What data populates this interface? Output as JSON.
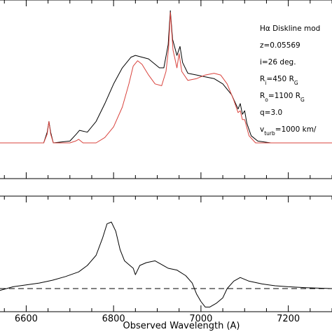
{
  "chart_data": [
    {
      "type": "line",
      "panel": "top",
      "title": "",
      "xlabel": "",
      "ylabel": "",
      "xlim": [
        6540,
        7300
      ],
      "ylim": [
        0,
        1.0
      ],
      "annotation_lines": [
        "Hα Diskline mod",
        "z=0.05569",
        "i=26 deg.",
        "R_i=450 R_G",
        "R_o=1100 R_G",
        "q=3.0",
        "v_turb=1000 km/"
      ],
      "series": [
        {
          "color": "#000000",
          "points": [
            [
              6540,
              0.2
            ],
            [
              6600,
              0.2
            ],
            [
              6640,
              0.2
            ],
            [
              6648,
              0.26
            ],
            [
              6652,
              0.32
            ],
            [
              6656,
              0.26
            ],
            [
              6662,
              0.2
            ],
            [
              6700,
              0.21
            ],
            [
              6715,
              0.25
            ],
            [
              6722,
              0.27
            ],
            [
              6740,
              0.26
            ],
            [
              6760,
              0.32
            ],
            [
              6780,
              0.42
            ],
            [
              6800,
              0.53
            ],
            [
              6820,
              0.62
            ],
            [
              6840,
              0.68
            ],
            [
              6850,
              0.69
            ],
            [
              6865,
              0.68
            ],
            [
              6880,
              0.67
            ],
            [
              6895,
              0.64
            ],
            [
              6905,
              0.62
            ],
            [
              6915,
              0.62
            ],
            [
              6925,
              0.75
            ],
            [
              6930,
              0.94
            ],
            [
              6935,
              0.78
            ],
            [
              6945,
              0.69
            ],
            [
              6952,
              0.74
            ],
            [
              6958,
              0.65
            ],
            [
              6970,
              0.59
            ],
            [
              6990,
              0.58
            ],
            [
              7010,
              0.57
            ],
            [
              7030,
              0.56
            ],
            [
              7050,
              0.53
            ],
            [
              7070,
              0.47
            ],
            [
              7085,
              0.39
            ],
            [
              7090,
              0.42
            ],
            [
              7095,
              0.36
            ],
            [
              7100,
              0.38
            ],
            [
              7105,
              0.31
            ],
            [
              7115,
              0.24
            ],
            [
              7130,
              0.21
            ],
            [
              7160,
              0.2
            ],
            [
              7200,
              0.2
            ],
            [
              7300,
              0.2
            ]
          ]
        },
        {
          "color": "#d9433d",
          "points": [
            [
              6540,
              0.2
            ],
            [
              6600,
              0.2
            ],
            [
              6640,
              0.2
            ],
            [
              6648,
              0.25
            ],
            [
              6652,
              0.32
            ],
            [
              6656,
              0.25
            ],
            [
              6662,
              0.2
            ],
            [
              6700,
              0.2
            ],
            [
              6713,
              0.21
            ],
            [
              6720,
              0.22
            ],
            [
              6730,
              0.2
            ],
            [
              6760,
              0.2
            ],
            [
              6780,
              0.23
            ],
            [
              6800,
              0.29
            ],
            [
              6820,
              0.4
            ],
            [
              6835,
              0.53
            ],
            [
              6845,
              0.63
            ],
            [
              6855,
              0.66
            ],
            [
              6865,
              0.64
            ],
            [
              6880,
              0.58
            ],
            [
              6895,
              0.53
            ],
            [
              6910,
              0.52
            ],
            [
              6920,
              0.6
            ],
            [
              6926,
              0.73
            ],
            [
              6930,
              0.93
            ],
            [
              6936,
              0.72
            ],
            [
              6945,
              0.62
            ],
            [
              6950,
              0.7
            ],
            [
              6956,
              0.6
            ],
            [
              6970,
              0.55
            ],
            [
              6990,
              0.56
            ],
            [
              7010,
              0.58
            ],
            [
              7030,
              0.59
            ],
            [
              7045,
              0.58
            ],
            [
              7060,
              0.53
            ],
            [
              7075,
              0.44
            ],
            [
              7085,
              0.37
            ],
            [
              7090,
              0.38
            ],
            [
              7095,
              0.33
            ],
            [
              7100,
              0.33
            ],
            [
              7110,
              0.24
            ],
            [
              7125,
              0.2
            ],
            [
              7160,
              0.2
            ],
            [
              7300,
              0.2
            ]
          ]
        }
      ]
    },
    {
      "type": "line",
      "panel": "bottom",
      "title": "",
      "xlabel": "Observed Wavelength (A)",
      "ylabel": "",
      "xlim": [
        6540,
        7300
      ],
      "ylim": [
        -0.25,
        1.0
      ],
      "x_ticks": [
        6600,
        6800,
        7000,
        7200
      ],
      "zero_line": 0,
      "series": [
        {
          "color": "#000000",
          "points": [
            [
              6540,
              -0.02
            ],
            [
              6570,
              0.02
            ],
            [
              6600,
              0.04
            ],
            [
              6630,
              0.06
            ],
            [
              6660,
              0.09
            ],
            [
              6690,
              0.13
            ],
            [
              6720,
              0.18
            ],
            [
              6740,
              0.25
            ],
            [
              6760,
              0.36
            ],
            [
              6775,
              0.55
            ],
            [
              6785,
              0.7
            ],
            [
              6795,
              0.72
            ],
            [
              6805,
              0.62
            ],
            [
              6815,
              0.42
            ],
            [
              6825,
              0.3
            ],
            [
              6835,
              0.26
            ],
            [
              6845,
              0.22
            ],
            [
              6850,
              0.15
            ],
            [
              6860,
              0.25
            ],
            [
              6875,
              0.28
            ],
            [
              6895,
              0.3
            ],
            [
              6910,
              0.26
            ],
            [
              6925,
              0.22
            ],
            [
              6945,
              0.2
            ],
            [
              6965,
              0.14
            ],
            [
              6980,
              0.06
            ],
            [
              6990,
              -0.06
            ],
            [
              7000,
              -0.14
            ],
            [
              7010,
              -0.2
            ],
            [
              7020,
              -0.2
            ],
            [
              7035,
              -0.16
            ],
            [
              7050,
              -0.1
            ],
            [
              7060,
              0.0
            ],
            [
              7075,
              0.08
            ],
            [
              7090,
              0.12
            ],
            [
              7110,
              0.08
            ],
            [
              7140,
              0.05
            ],
            [
              7170,
              0.03
            ],
            [
              7200,
              0.02
            ],
            [
              7240,
              0.01
            ],
            [
              7300,
              0.0
            ]
          ]
        }
      ]
    }
  ]
}
